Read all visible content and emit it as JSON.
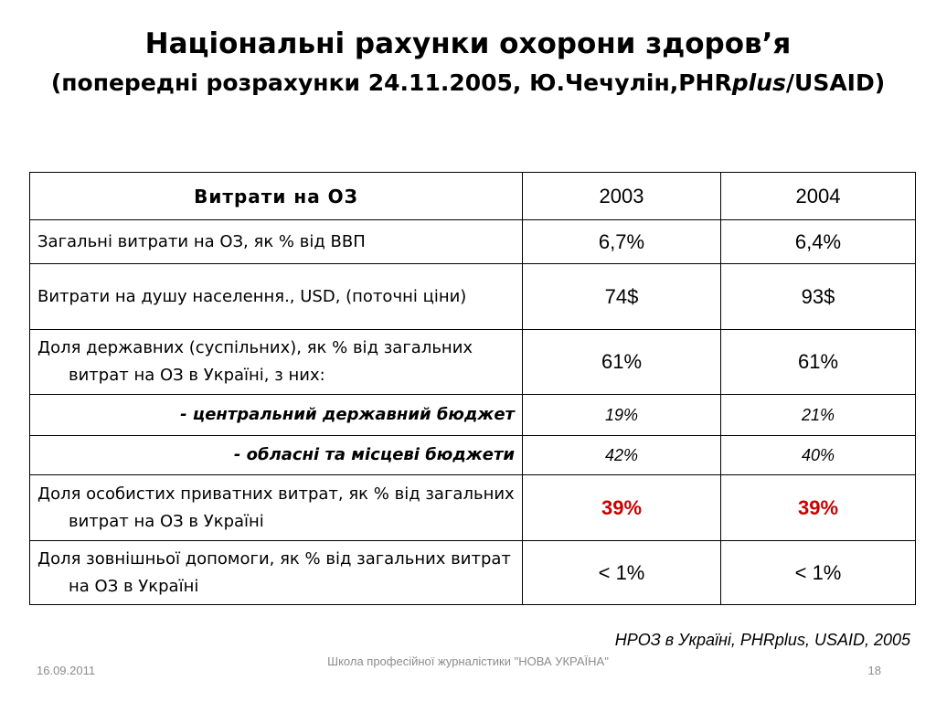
{
  "slide": {
    "title": "Національні рахунки охорони здоров’я",
    "subtitle_pre": "(попередні розрахунки 24.11.2005, Ю.Чечулін,PHR",
    "subtitle_italic": "plus",
    "subtitle_post": "/USAID)"
  },
  "table": {
    "headers": [
      "Витрати на ОЗ",
      "2003",
      "2004"
    ],
    "rows": [
      {
        "label": "Загальні витрати на ОЗ, як % від ВВП",
        "v2003": "6,7%",
        "v2004": "6,4%"
      },
      {
        "label": "Витрати на душу населення., USD, (поточні ціни)",
        "v2003": "74$",
        "v2004": "93$"
      },
      {
        "label": "Доля державних (суспільних), як % від загальних витрат на ОЗ в Україні, з них:",
        "v2003": "61%",
        "v2004": "61%"
      },
      {
        "label": "- центральний державний бюджет",
        "v2003": "19%",
        "v2004": "21%"
      },
      {
        "label": "- обласні та місцеві бюджети",
        "v2003": "42%",
        "v2004": "40%"
      },
      {
        "label": "Доля особистих приватних витрат, як % від загальних витрат на ОЗ в Україні",
        "v2003": "39%",
        "v2004": "39%"
      },
      {
        "label": "Доля зовнішньої допомоги, як % від загальних витрат на ОЗ в Україні",
        "v2003": "< 1%",
        "v2004": "< 1%"
      }
    ]
  },
  "source": "НРОЗ в Україні, PHRplus, USAID, 2005",
  "footer": {
    "date": "16.09.2011",
    "center": "Школа професійної журналістики \"НОВА УКРАЇНА\"",
    "page": "18"
  },
  "colors": {
    "highlight": "#cc0000",
    "footer_text": "#8c8c8c"
  }
}
